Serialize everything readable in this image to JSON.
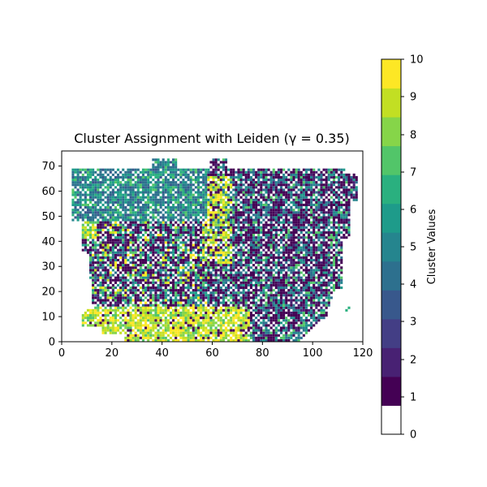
{
  "chart_data": {
    "type": "heatmap",
    "title": "Cluster Assignment with Leiden (γ = 0.35)",
    "xlim": [
      0,
      120
    ],
    "ylim": [
      0,
      76
    ],
    "x_ticks": [
      "0",
      "20",
      "40",
      "60",
      "80",
      "100",
      "120"
    ],
    "y_ticks": [
      "0",
      "10",
      "20",
      "30",
      "40",
      "50",
      "60",
      "70"
    ],
    "colorbar": {
      "label": "Cluster Values",
      "range": [
        0,
        10
      ],
      "ticks": [
        "0",
        "1",
        "2",
        "3",
        "4",
        "5",
        "6",
        "7",
        "8",
        "9",
        "10"
      ],
      "colors": [
        "#ffffff",
        "#440154",
        "#482173",
        "#433e85",
        "#38588c",
        "#2d708e",
        "#25858e",
        "#1e9b8a",
        "#2ab07f",
        "#52c569",
        "#86d549",
        "#c2df23",
        "#fde725"
      ]
    },
    "grid": false,
    "legend": "colorbar-right",
    "approx_regions": [
      {
        "region": "upper-left",
        "x": [
          5,
          60
        ],
        "y": [
          48,
          72
        ],
        "dominant_clusters": [
          5,
          6,
          7
        ]
      },
      {
        "region": "right-half",
        "x": [
          60,
          115
        ],
        "y": [
          5,
          68
        ],
        "dominant_clusters": [
          1,
          2,
          5,
          6
        ]
      },
      {
        "region": "lower-left-center",
        "x": [
          10,
          60
        ],
        "y": [
          10,
          45
        ],
        "dominant_clusters": [
          1,
          2,
          9,
          10
        ]
      },
      {
        "region": "bottom-band",
        "x": [
          5,
          70
        ],
        "y": [
          0,
          15
        ],
        "dominant_clusters": [
          9,
          10
        ]
      },
      {
        "region": "center-band",
        "x": [
          55,
          70
        ],
        "y": [
          30,
          65
        ],
        "dominant_clusters": [
          9,
          10
        ]
      }
    ]
  }
}
